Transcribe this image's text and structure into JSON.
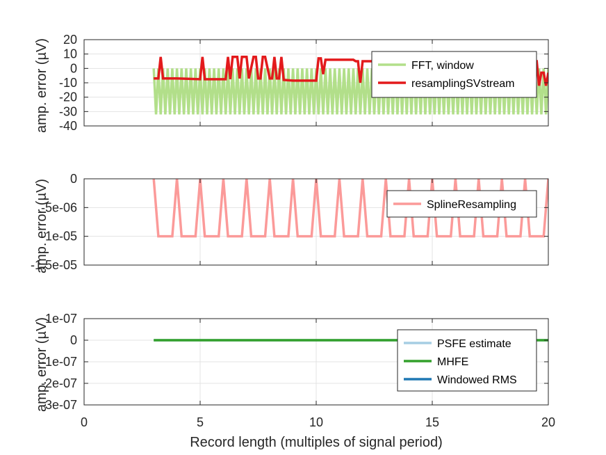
{
  "chart_data": [
    {
      "type": "line",
      "ylabel": "amp. error (µV)",
      "xlim": [
        0,
        20
      ],
      "ylim": [
        -40,
        20
      ],
      "yticks": [
        20,
        10,
        0,
        -10,
        -20,
        -30,
        -40
      ],
      "ytick_labels": [
        "20",
        "10",
        "0",
        "-10",
        "-20",
        "-30",
        "-40"
      ],
      "grid": true,
      "legend": "top-right",
      "series": [
        {
          "name": "FFT, window",
          "color": "#b2df8a",
          "pattern": {
            "x_start": 3,
            "x_end": 20,
            "step": 0.1,
            "high": 0,
            "low": -32
          }
        },
        {
          "name": "resamplingSVstream",
          "color": "#e31a1c",
          "x": [
            3,
            3.1,
            3.2,
            3.3,
            3.4,
            3.5,
            4,
            5,
            5.1,
            5.2,
            5.3,
            6,
            6.1,
            6.2,
            6.3,
            6.4,
            6.6,
            6.7,
            6.8,
            6.9,
            7,
            7.1,
            7.3,
            7.4,
            7.5,
            7.6,
            7.7,
            7.8,
            8,
            8.1,
            8.2,
            8.3,
            8.4,
            8.5,
            8.6,
            9,
            10,
            10.1,
            10.2,
            10.3,
            10.4,
            11,
            11.1,
            11.2,
            11.3,
            11.6,
            11.7,
            11.8,
            11.9,
            12,
            12.1,
            12.3,
            13,
            13.1,
            13.3,
            13.4,
            13.5,
            13.6,
            13.7,
            14,
            15,
            16,
            17,
            18,
            19,
            19.5,
            19.6,
            19.7,
            19.8,
            19.9,
            20
          ],
          "y": [
            -7,
            -7,
            -7,
            8,
            -7,
            -7,
            -7,
            -7.5,
            8,
            -7.5,
            -7.5,
            -7.5,
            -7.5,
            8,
            -7.5,
            8,
            8,
            -7,
            8,
            8,
            8,
            -7,
            8,
            8,
            -7,
            -7,
            8,
            8,
            -7,
            -7,
            8,
            -7,
            -7,
            8,
            -8,
            -8.5,
            -8.5,
            7,
            7,
            -4,
            6,
            6,
            6,
            6,
            6,
            6,
            5,
            5,
            -10,
            5,
            5,
            5,
            5,
            5,
            5,
            5,
            5,
            5,
            5,
            5,
            5,
            5,
            5,
            5,
            5,
            5,
            -12,
            -3,
            -3,
            -12,
            -3
          ]
        }
      ]
    },
    {
      "type": "line",
      "ylabel": "amp. error (µV)",
      "xlim": [
        0,
        20
      ],
      "ylim": [
        -1.5e-05,
        0
      ],
      "yticks": [
        0,
        -5e-06,
        -1e-05,
        -1.5e-05
      ],
      "ytick_labels": [
        "0",
        "-5e-06",
        "-1e-05",
        "-1.5e-05"
      ],
      "grid": true,
      "legend": "top-right",
      "series": [
        {
          "name": "SplineResampling",
          "color": "#fb9a99",
          "x": [
            3,
            3.2,
            3.8,
            4,
            4.2,
            4.8,
            5,
            5.2,
            5.8,
            6,
            6.2,
            6.8,
            7,
            7.2,
            7.8,
            8,
            8.2,
            8.8,
            9,
            9.2,
            9.8,
            10,
            10.2,
            10.8,
            11,
            11.2,
            11.8,
            12,
            12.2,
            12.8,
            13,
            13.2,
            13.8,
            14,
            14.2,
            14.8,
            15,
            15.2,
            15.8,
            16,
            16.2,
            16.8,
            17,
            17.2,
            17.8,
            18,
            18.2,
            18.8,
            19,
            19.2,
            19.8,
            20
          ],
          "y": [
            0,
            -1e-05,
            -1e-05,
            0,
            -1e-05,
            -1e-05,
            0,
            -1e-05,
            -1e-05,
            0,
            -1e-05,
            -1e-05,
            0,
            -1e-05,
            -1e-05,
            0,
            -1e-05,
            -1e-05,
            0,
            -1e-05,
            -1e-05,
            0,
            -1e-05,
            -1e-05,
            0,
            -1e-05,
            -1e-05,
            0,
            -1e-05,
            -1e-05,
            0,
            -1e-05,
            -1e-05,
            0,
            -1e-05,
            -1e-05,
            0,
            -1e-05,
            -1e-05,
            0,
            -1e-05,
            -1e-05,
            0,
            -1e-05,
            -1e-05,
            0,
            -1e-05,
            -1e-05,
            0,
            -1e-05,
            -1e-05,
            0
          ]
        }
      ]
    },
    {
      "type": "line",
      "ylabel": "amp. error (µV)",
      "xlabel": "Record length (multiples of signal period)",
      "xlim": [
        0,
        20
      ],
      "xticks": [
        0,
        5,
        10,
        15,
        20
      ],
      "xtick_labels": [
        "0",
        "5",
        "10",
        "15",
        "20"
      ],
      "ylim": [
        -3e-07,
        1e-07
      ],
      "yticks": [
        1e-07,
        0,
        -1e-07,
        -2e-07,
        -3e-07
      ],
      "ytick_labels": [
        "1e-07",
        "0",
        "-1e-07",
        "-2e-07",
        "-3e-07"
      ],
      "grid": true,
      "legend": "bottom-right",
      "series": [
        {
          "name": "PSFE estimate",
          "color": "#a6cee3",
          "x": [
            3,
            20
          ],
          "y": [
            0,
            0
          ]
        },
        {
          "name": "MHFE",
          "color": "#33a02c",
          "x": [
            3,
            20
          ],
          "y": [
            0,
            0
          ]
        },
        {
          "name": "Windowed RMS",
          "color": "#1f78b4",
          "x": [],
          "y": []
        }
      ]
    }
  ]
}
